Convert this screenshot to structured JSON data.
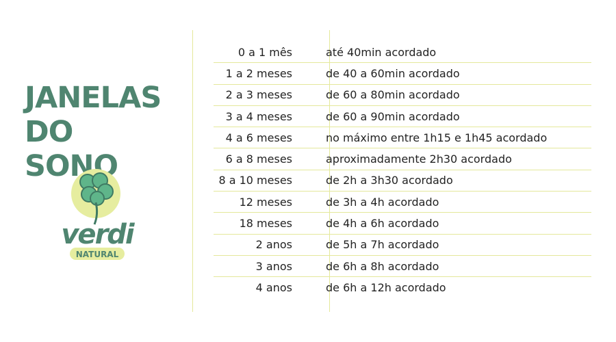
{
  "title": {
    "line1": "JANELAS",
    "line2": "DO SONO"
  },
  "logo": {
    "brand": "verdi",
    "subtitle": "NATURAL"
  },
  "colors": {
    "title": "#4f8570",
    "lines": "#e4e89a",
    "logo_circle": "#e6ed9f",
    "leaf": "#5fb58a"
  },
  "rows": [
    {
      "age": "0 a 1 mês",
      "window": "até 40min acordado"
    },
    {
      "age": "1 a 2 meses",
      "window": "de 40 a 60min acordado"
    },
    {
      "age": "2 a 3 meses",
      "window": "de 60 a 80min acordado"
    },
    {
      "age": "3 a 4 meses",
      "window": "de 60 a 90min acordado"
    },
    {
      "age": "4 a 6 meses",
      "window": "no máximo entre 1h15 e 1h45 acordado"
    },
    {
      "age": "6 a 8 meses",
      "window": "aproximadamente 2h30 acordado"
    },
    {
      "age": "8 a 10 meses",
      "window": "de 2h a 3h30 acordado"
    },
    {
      "age": "12 meses",
      "window": "de 3h a 4h acordado"
    },
    {
      "age": "18 meses",
      "window": "de 4h a 6h acordado"
    },
    {
      "age": "2 anos",
      "window": "de 5h a 7h acordado"
    },
    {
      "age": "3 anos",
      "window": "de 6h a 8h acordado"
    },
    {
      "age": "4 anos",
      "window": "de 6h a 12h acordado"
    }
  ]
}
